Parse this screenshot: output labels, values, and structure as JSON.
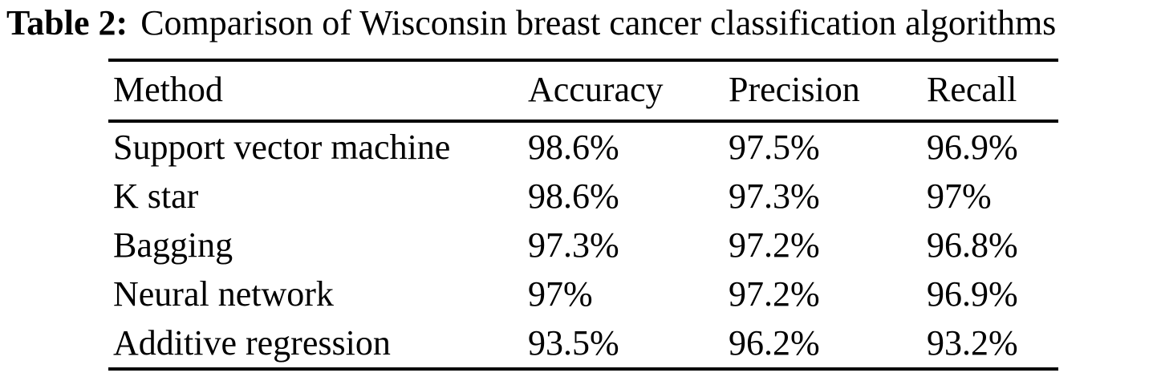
{
  "caption": {
    "label": "Table 2:",
    "text": "Comparison of Wisconsin breast cancer classification algorithms"
  },
  "table": {
    "columns": [
      "Method",
      "Accuracy",
      "Precision",
      "Recall"
    ],
    "rows": [
      {
        "method": "Support vector machine",
        "accuracy": "98.6%",
        "precision": "97.5%",
        "recall": "96.9%"
      },
      {
        "method": "K star",
        "accuracy": "98.6%",
        "precision": "97.3%",
        "recall": "97%"
      },
      {
        "method": "Bagging",
        "accuracy": "97.3%",
        "precision": "97.2%",
        "recall": "96.8%"
      },
      {
        "method": "Neural network",
        "accuracy": "97%",
        "precision": "97.2%",
        "recall": "96.9%"
      },
      {
        "method": "Additive regression",
        "accuracy": "93.5%",
        "precision": "96.2%",
        "recall": "93.2%"
      }
    ]
  }
}
